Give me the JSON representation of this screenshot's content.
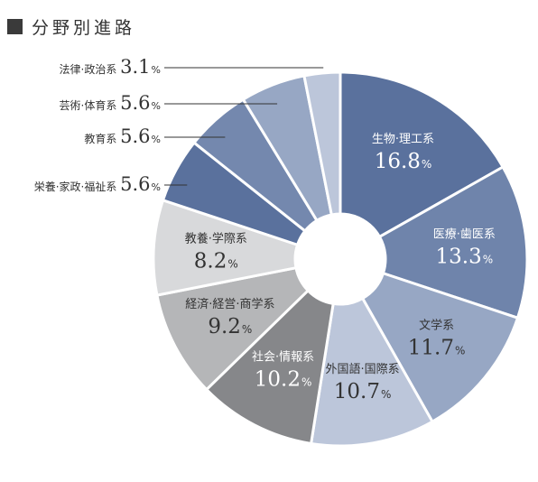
{
  "chart_data": {
    "type": "pie",
    "title": "分野別進路",
    "donut": true,
    "slices": [
      {
        "label": "生物·理工系",
        "value": 16.8,
        "display": "16.8",
        "color": "#5a719d",
        "text_color": "#ffffff",
        "label_inside": true
      },
      {
        "label": "医療·歯医系",
        "value": 13.3,
        "display": "13.3",
        "color": "#6f84ab",
        "text_color": "#ffffff",
        "label_inside": true
      },
      {
        "label": "文学系",
        "value": 11.7,
        "display": "11.7",
        "color": "#97a7c4",
        "text_color": "#333333",
        "label_inside": true
      },
      {
        "label": "外国語·国際系",
        "value": 10.7,
        "display": "10.7",
        "color": "#bcc6da",
        "text_color": "#333333",
        "label_inside": true
      },
      {
        "label": "社会·情報系",
        "value": 10.2,
        "display": "10.2",
        "color": "#86878a",
        "text_color": "#ffffff",
        "label_inside": true
      },
      {
        "label": "経済·経営·商学系",
        "value": 9.2,
        "display": "9.2",
        "color": "#b5b6b8",
        "text_color": "#333333",
        "label_inside": true
      },
      {
        "label": "教養·学際系",
        "value": 8.2,
        "display": "8.2",
        "color": "#d8d9db",
        "text_color": "#333333",
        "label_inside": true
      },
      {
        "label": "栄養·家政·福祉系",
        "value": 5.6,
        "display": "5.6",
        "color": "#5a719d",
        "text_color": "#333333",
        "label_inside": false
      },
      {
        "label": "教育系",
        "value": 5.6,
        "display": "5.6",
        "color": "#7488ae",
        "text_color": "#333333",
        "label_inside": false
      },
      {
        "label": "芸術·体育系",
        "value": 5.6,
        "display": "5.6",
        "color": "#97a7c4",
        "text_color": "#333333",
        "label_inside": false
      },
      {
        "label": "法律·政治系",
        "value": 3.1,
        "display": "3.1",
        "color": "#bcc6da",
        "text_color": "#333333",
        "label_inside": false
      }
    ],
    "unit": "%"
  }
}
